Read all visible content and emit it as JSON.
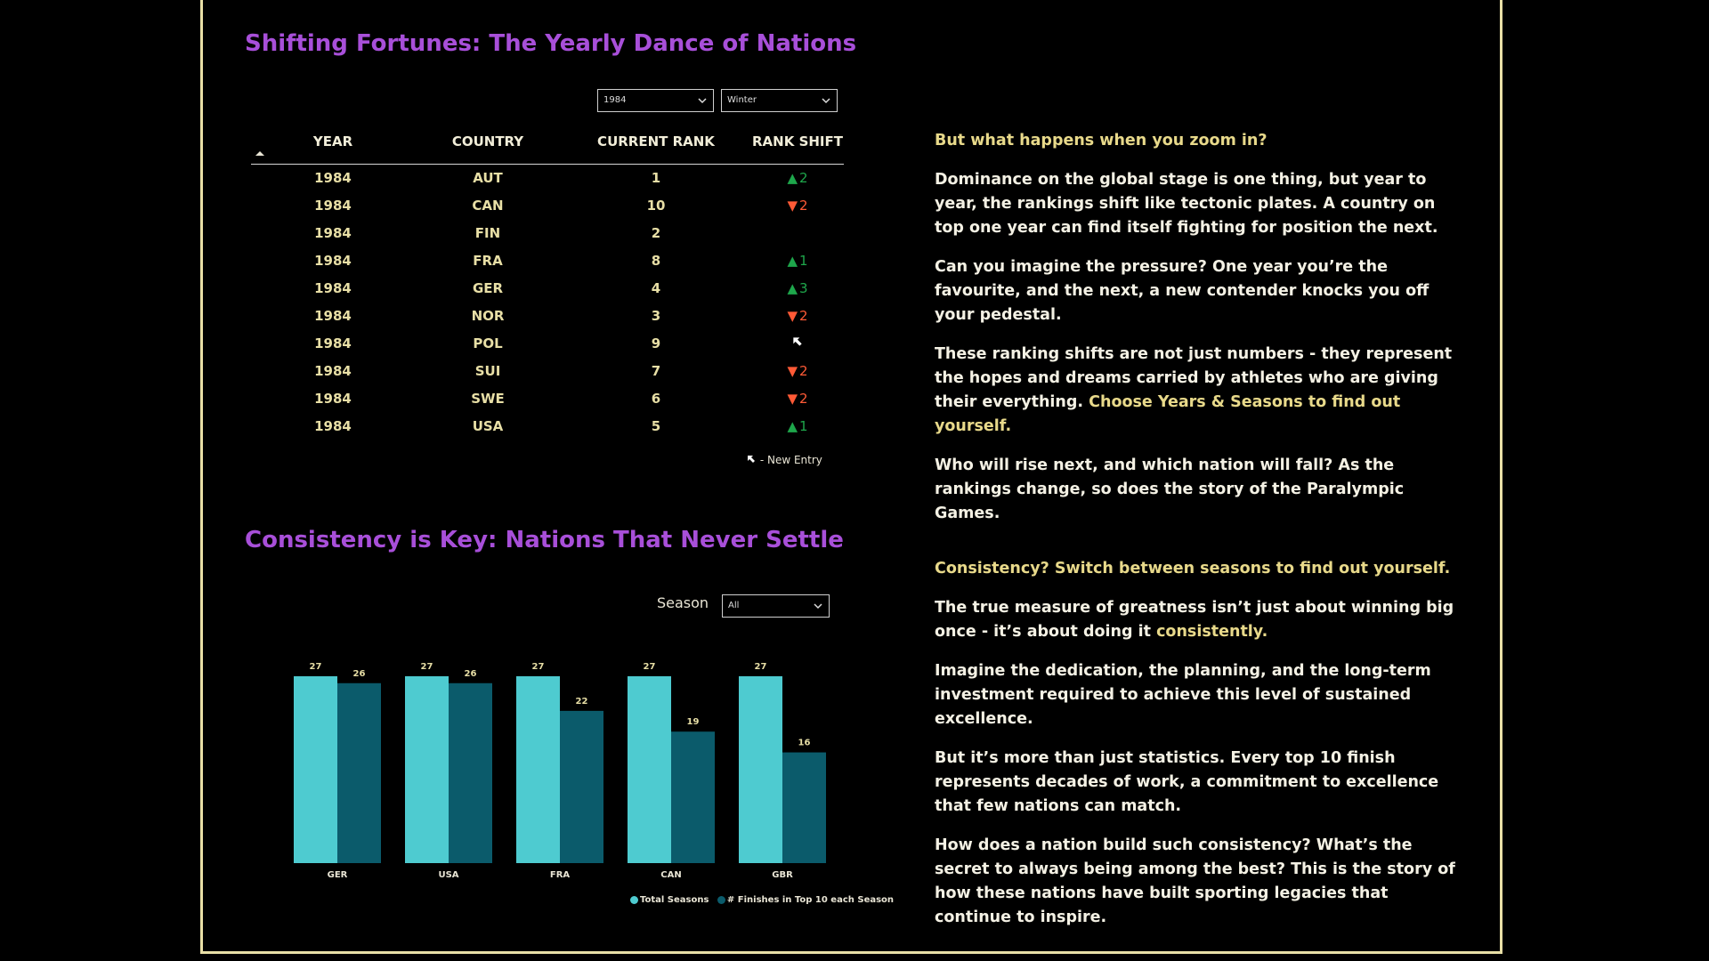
{
  "section1": {
    "title": "Shifting Fortunes: The Yearly Dance of Nations",
    "year_filter": "1984",
    "season_filter": "Winter",
    "columns": [
      "YEAR",
      "COUNTRY",
      "CURRENT RANK",
      "RANK SHIFT"
    ],
    "rows": [
      {
        "year": "1984",
        "country": "AUT",
        "rank": "1",
        "shift": "2",
        "dir": "up"
      },
      {
        "year": "1984",
        "country": "CAN",
        "rank": "10",
        "shift": "2",
        "dir": "down"
      },
      {
        "year": "1984",
        "country": "FIN",
        "rank": "2",
        "shift": "",
        "dir": "none"
      },
      {
        "year": "1984",
        "country": "FRA",
        "rank": "8",
        "shift": "1",
        "dir": "up"
      },
      {
        "year": "1984",
        "country": "GER",
        "rank": "4",
        "shift": "3",
        "dir": "up"
      },
      {
        "year": "1984",
        "country": "NOR",
        "rank": "3",
        "shift": "2",
        "dir": "down"
      },
      {
        "year": "1984",
        "country": "POL",
        "rank": "9",
        "shift": "",
        "dir": "new"
      },
      {
        "year": "1984",
        "country": "SUI",
        "rank": "7",
        "shift": "2",
        "dir": "down"
      },
      {
        "year": "1984",
        "country": "SWE",
        "rank": "6",
        "shift": "2",
        "dir": "down"
      },
      {
        "year": "1984",
        "country": "USA",
        "rank": "5",
        "shift": "1",
        "dir": "up"
      }
    ],
    "legend_new_entry": "- New Entry",
    "narrative": {
      "heading": "But what happens when you zoom in?",
      "p1": "Dominance on the global stage is one thing, but year to year, the rankings shift like tectonic plates. A country on top one year can find itself fighting for position the next.",
      "p2": "Can you imagine the pressure? One year you’re the favourite, and the next, a new contender knocks you off your pedestal.",
      "p3": "These ranking shifts are not just numbers - they represent the hopes and dreams carried by athletes who are giving their everything.",
      "p3_highlight": "Choose Years & Seasons to find out yourself.",
      "p4": "Who will rise next, and which nation will fall? As the rankings change, so does the story of the Paralympic Games."
    }
  },
  "section2": {
    "title": "Consistency is Key: Nations That Never Settle",
    "season_label": "Season",
    "season_filter": "All",
    "narrative": {
      "heading": "Consistency? Switch between seasons to find out yourself.",
      "p1": "The true measure of greatness isn’t just about winning big once - it’s about doing it",
      "p1_highlight": "consistently.",
      "p2": "Imagine the dedication, the planning, and the long-term investment required to achieve this level of sustained excellence.",
      "p3": "But it’s more than just statistics. Every top 10 finish represents decades of work, a commitment to excellence that few nations can match.",
      "p4": "How does a nation build such consistency? What’s the secret to always being among the best? This is the story of how these nations have built sporting legacies that continue to inspire."
    }
  },
  "chart_data": {
    "type": "bar",
    "categories": [
      "GER",
      "USA",
      "FRA",
      "CAN",
      "GBR"
    ],
    "series": [
      {
        "name": "Total Seasons",
        "values": [
          27,
          27,
          27,
          27,
          27
        ],
        "color": "#4ecbd0"
      },
      {
        "name": "# Finishes in Top 10 each Season",
        "values": [
          26,
          26,
          22,
          19,
          16
        ],
        "color": "#0b5b6b"
      }
    ],
    "ylim": [
      0,
      27
    ],
    "grid": false,
    "legend_position": "bottom-right"
  },
  "colors": {
    "title": "#a84fd9",
    "accent": "#e8d98a",
    "up": "#1ea64b",
    "down": "#ff5a36",
    "frame": "#e8dfa6"
  }
}
